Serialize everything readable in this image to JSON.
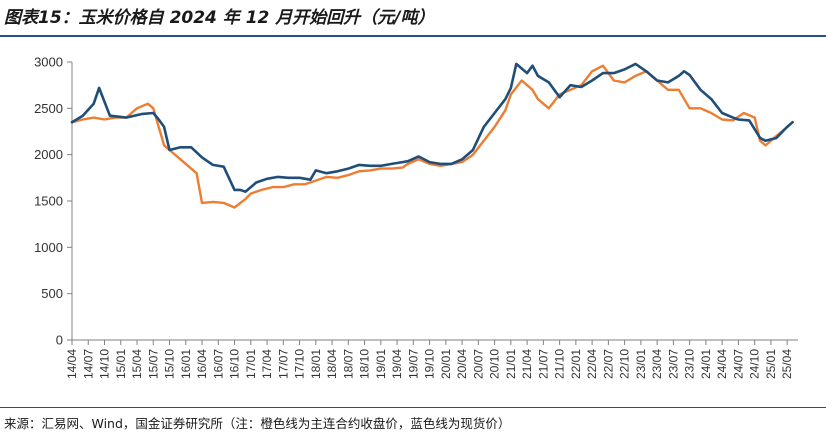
{
  "title": "图表15：玉米价格自 2024 年 12 月开始回升（元/吨）",
  "source": "来源：汇易网、Wind，国金证券研究所（注：橙色线为主连合约收盘价，蓝色线为现货价）",
  "chart_data": {
    "type": "line",
    "title": "图表15：玉米价格自 2024 年 12 月开始回升（元/吨）",
    "xlabel": "",
    "ylabel": "",
    "ylim": [
      0,
      3000
    ],
    "yticks": [
      0,
      500,
      1000,
      1500,
      2000,
      2500,
      3000
    ],
    "xlim": [
      "2014-04",
      "2025-06"
    ],
    "grid": false,
    "legend": "none",
    "colors": {
      "spot": "#1f4e79",
      "futures": "#ed7d31"
    },
    "x_tick_labels": [
      "14/04",
      "14/07",
      "14/10",
      "15/01",
      "15/04",
      "15/07",
      "15/10",
      "16/01",
      "16/04",
      "16/07",
      "16/10",
      "17/01",
      "17/04",
      "17/07",
      "17/10",
      "18/01",
      "18/04",
      "18/07",
      "18/10",
      "19/01",
      "19/04",
      "19/07",
      "19/10",
      "20/01",
      "20/04",
      "20/07",
      "20/10",
      "21/01",
      "21/04",
      "21/07",
      "21/10",
      "22/01",
      "22/04",
      "22/07",
      "22/10",
      "23/01",
      "23/04",
      "23/07",
      "23/10",
      "24/01",
      "24/04",
      "24/07",
      "24/10",
      "25/01",
      "25/04"
    ],
    "series": [
      {
        "color": "#1f4e79",
        "x": [
          "2014-04",
          "2014-06",
          "2014-08",
          "2014-09",
          "2014-11",
          "2015-02",
          "2015-05",
          "2015-07",
          "2015-08",
          "2015-09",
          "2015-10",
          "2015-12",
          "2016-02",
          "2016-04",
          "2016-06",
          "2016-08",
          "2016-10",
          "2016-11",
          "2016-12",
          "2017-02",
          "2017-04",
          "2017-06",
          "2017-08",
          "2017-10",
          "2017-12",
          "2018-01",
          "2018-03",
          "2018-05",
          "2018-07",
          "2018-09",
          "2018-11",
          "2019-01",
          "2019-03",
          "2019-05",
          "2019-06",
          "2019-08",
          "2019-10",
          "2019-12",
          "2020-02",
          "2020-04",
          "2020-06",
          "2020-08",
          "2020-10",
          "2020-12",
          "2021-01",
          "2021-02",
          "2021-04",
          "2021-05",
          "2021-06",
          "2021-08",
          "2021-10",
          "2021-12",
          "2022-02",
          "2022-04",
          "2022-06",
          "2022-08",
          "2022-10",
          "2022-12",
          "2023-02",
          "2023-04",
          "2023-06",
          "2023-08",
          "2023-09",
          "2023-10",
          "2023-12",
          "2024-02",
          "2024-04",
          "2024-06",
          "2024-07",
          "2024-09",
          "2024-11",
          "2024-12",
          "2025-02",
          "2025-04",
          "2025-05"
        ],
        "values": [
          2350,
          2420,
          2550,
          2720,
          2420,
          2400,
          2440,
          2450,
          2380,
          2300,
          2050,
          2080,
          2080,
          1970,
          1890,
          1870,
          1620,
          1620,
          1600,
          1700,
          1740,
          1760,
          1750,
          1750,
          1730,
          1830,
          1800,
          1820,
          1850,
          1890,
          1880,
          1880,
          1900,
          1920,
          1930,
          1980,
          1920,
          1900,
          1900,
          1950,
          2050,
          2300,
          2450,
          2600,
          2720,
          2980,
          2880,
          2960,
          2850,
          2780,
          2620,
          2750,
          2730,
          2800,
          2880,
          2880,
          2920,
          2980,
          2900,
          2800,
          2780,
          2850,
          2900,
          2860,
          2700,
          2600,
          2450,
          2400,
          2380,
          2370,
          2180,
          2150,
          2180,
          2300,
          2350
        ]
      },
      {
        "color": "#ed7d31",
        "x": [
          "2014-04",
          "2014-06",
          "2014-08",
          "2014-10",
          "2014-12",
          "2015-02",
          "2015-04",
          "2015-06",
          "2015-07",
          "2015-08",
          "2015-09",
          "2015-10",
          "2015-12",
          "2016-01",
          "2016-02",
          "2016-03",
          "2016-04",
          "2016-06",
          "2016-08",
          "2016-10",
          "2016-12",
          "2017-01",
          "2017-03",
          "2017-05",
          "2017-07",
          "2017-09",
          "2017-11",
          "2018-01",
          "2018-03",
          "2018-05",
          "2018-07",
          "2018-09",
          "2018-11",
          "2019-01",
          "2019-03",
          "2019-05",
          "2019-06",
          "2019-08",
          "2019-10",
          "2019-12",
          "2020-02",
          "2020-04",
          "2020-06",
          "2020-08",
          "2020-10",
          "2020-12",
          "2021-01",
          "2021-03",
          "2021-05",
          "2021-06",
          "2021-08",
          "2021-10",
          "2021-12",
          "2022-02",
          "2022-04",
          "2022-06",
          "2022-08",
          "2022-10",
          "2022-12",
          "2023-02",
          "2023-04",
          "2023-06",
          "2023-08",
          "2023-10",
          "2023-12",
          "2024-02",
          "2024-04",
          "2024-06",
          "2024-08",
          "2024-10",
          "2024-11",
          "2024-12",
          "2025-02",
          "2025-04",
          "2025-05"
        ],
        "values": [
          2350,
          2380,
          2400,
          2380,
          2400,
          2400,
          2500,
          2550,
          2500,
          2300,
          2100,
          2050,
          1950,
          1900,
          1850,
          1800,
          1480,
          1490,
          1480,
          1430,
          1520,
          1580,
          1620,
          1650,
          1650,
          1680,
          1680,
          1720,
          1760,
          1750,
          1780,
          1820,
          1830,
          1850,
          1850,
          1860,
          1900,
          1950,
          1900,
          1880,
          1900,
          1920,
          2000,
          2150,
          2300,
          2480,
          2650,
          2800,
          2700,
          2600,
          2500,
          2650,
          2700,
          2750,
          2900,
          2960,
          2800,
          2780,
          2850,
          2900,
          2800,
          2700,
          2700,
          2500,
          2500,
          2450,
          2380,
          2370,
          2450,
          2400,
          2150,
          2100,
          2200,
          2300,
          2350
        ]
      }
    ]
  }
}
